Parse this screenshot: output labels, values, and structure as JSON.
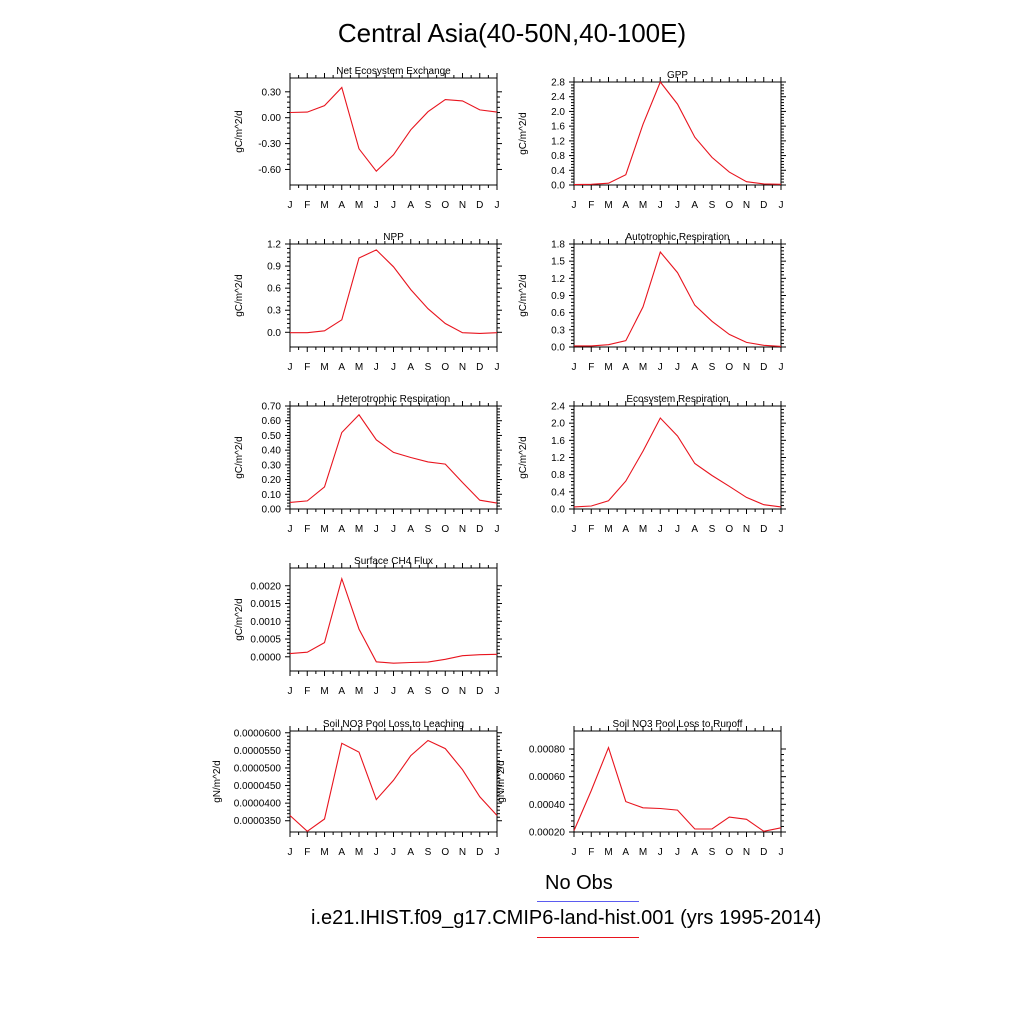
{
  "page": {
    "title": "Central Asia(40-50N,40-100E)"
  },
  "colors": {
    "model": "#e8141e",
    "obs": "#5b5bf0",
    "axis": "#000000"
  },
  "legend": {
    "obs_label": "No Obs",
    "model_label": "i.e21.IHIST.f09_g17.CMIP6-land-hist.001 (yrs 1995-2014)"
  },
  "chart_data": [
    {
      "type": "line",
      "title": "Net Ecosystem Exchange",
      "ylabel": "gC/m^2/d",
      "x": [
        "J",
        "F",
        "M",
        "A",
        "M",
        "J",
        "J",
        "A",
        "S",
        "O",
        "N",
        "D",
        "J"
      ],
      "ylim": [
        -0.78,
        0.46
      ],
      "yticks": [
        -0.6,
        -0.3,
        0.0,
        0.3
      ],
      "yticklabels": [
        "-0.60",
        "-0.30",
        "0.00",
        "0.30"
      ],
      "series": [
        {
          "values": [
            0.06,
            0.065,
            0.14,
            0.35,
            -0.36,
            -0.62,
            -0.43,
            -0.14,
            0.07,
            0.21,
            0.195,
            0.09,
            0.065
          ]
        }
      ]
    },
    {
      "type": "line",
      "title": "GPP",
      "ylabel": "gC/m^2/d",
      "x": [
        "J",
        "F",
        "M",
        "A",
        "M",
        "J",
        "J",
        "A",
        "S",
        "O",
        "N",
        "D",
        "J"
      ],
      "ylim": [
        0,
        2.8
      ],
      "yticks": [
        0.0,
        0.4,
        0.8,
        1.2,
        1.6,
        2.0,
        2.4,
        2.8
      ],
      "yticklabels": [
        "0.0",
        "0.4",
        "0.8",
        "1.2",
        "1.6",
        "2.0",
        "2.4",
        "2.8"
      ],
      "series": [
        {
          "values": [
            0.01,
            0.02,
            0.05,
            0.28,
            1.65,
            2.8,
            2.2,
            1.3,
            0.75,
            0.35,
            0.09,
            0.03,
            0.02
          ]
        }
      ]
    },
    {
      "type": "line",
      "title": "NPP",
      "ylabel": "gC/m^2/d",
      "x": [
        "J",
        "F",
        "M",
        "A",
        "M",
        "J",
        "J",
        "A",
        "S",
        "O",
        "N",
        "D",
        "J"
      ],
      "ylim": [
        -0.2,
        1.2
      ],
      "yticks": [
        0.0,
        0.3,
        0.6,
        0.9,
        1.2
      ],
      "yticklabels": [
        "0.0",
        "0.3",
        "0.6",
        "0.9",
        "1.2"
      ],
      "series": [
        {
          "values": [
            -0.005,
            -0.005,
            0.02,
            0.17,
            1.01,
            1.12,
            0.89,
            0.58,
            0.32,
            0.12,
            -0.005,
            -0.015,
            -0.005
          ]
        }
      ]
    },
    {
      "type": "line",
      "title": "Autotrophic Respiration",
      "ylabel": "gC/m^2/d",
      "x": [
        "J",
        "F",
        "M",
        "A",
        "M",
        "J",
        "J",
        "A",
        "S",
        "O",
        "N",
        "D",
        "J"
      ],
      "ylim": [
        0,
        1.8
      ],
      "yticks": [
        0.0,
        0.3,
        0.6,
        0.9,
        1.2,
        1.5,
        1.8
      ],
      "yticklabels": [
        "0.0",
        "0.3",
        "0.6",
        "0.9",
        "1.2",
        "1.5",
        "1.8"
      ],
      "series": [
        {
          "values": [
            0.02,
            0.02,
            0.04,
            0.11,
            0.7,
            1.66,
            1.3,
            0.73,
            0.45,
            0.22,
            0.08,
            0.03,
            0.01
          ]
        }
      ]
    },
    {
      "type": "line",
      "title": "Heterotrophic Respiration",
      "ylabel": "gC/m^2/d",
      "x": [
        "J",
        "F",
        "M",
        "A",
        "M",
        "J",
        "J",
        "A",
        "S",
        "O",
        "N",
        "D",
        "J"
      ],
      "ylim": [
        0,
        0.7
      ],
      "yticks": [
        0.0,
        0.1,
        0.2,
        0.3,
        0.4,
        0.5,
        0.6,
        0.7
      ],
      "yticklabels": [
        "0.00",
        "0.10",
        "0.20",
        "0.30",
        "0.40",
        "0.50",
        "0.60",
        "0.70"
      ],
      "series": [
        {
          "values": [
            0.045,
            0.055,
            0.15,
            0.52,
            0.64,
            0.47,
            0.385,
            0.35,
            0.32,
            0.305,
            0.18,
            0.06,
            0.04
          ]
        }
      ]
    },
    {
      "type": "line",
      "title": "Ecosystem Respiration",
      "ylabel": "gC/m^2/d",
      "x": [
        "J",
        "F",
        "M",
        "A",
        "M",
        "J",
        "J",
        "A",
        "S",
        "O",
        "N",
        "D",
        "J"
      ],
      "ylim": [
        0,
        2.4
      ],
      "yticks": [
        0.0,
        0.4,
        0.8,
        1.2,
        1.6,
        2.0,
        2.4
      ],
      "yticklabels": [
        "0.0",
        "0.4",
        "0.8",
        "1.2",
        "1.6",
        "2.0",
        "2.4"
      ],
      "series": [
        {
          "values": [
            0.05,
            0.07,
            0.19,
            0.65,
            1.35,
            2.12,
            1.7,
            1.06,
            0.78,
            0.53,
            0.27,
            0.1,
            0.05
          ]
        }
      ]
    },
    {
      "type": "line",
      "title": "Surface CH4 Flux",
      "ylabel": "gC/m^2/d",
      "x": [
        "J",
        "F",
        "M",
        "A",
        "M",
        "J",
        "J",
        "A",
        "S",
        "O",
        "N",
        "D",
        "J"
      ],
      "ylim": [
        -0.0004,
        0.0025
      ],
      "yticks": [
        0.0,
        0.0005,
        0.001,
        0.0015,
        0.002
      ],
      "yticklabels": [
        "0.0000",
        "0.0005",
        "0.0010",
        "0.0015",
        "0.0020"
      ],
      "series": [
        {
          "values": [
            9e-05,
            0.00013,
            0.0004,
            0.0022,
            0.00078,
            -0.00014,
            -0.00018,
            -0.00016,
            -0.00015,
            -7e-05,
            3e-05,
            6e-05,
            7e-05
          ]
        }
      ]
    },
    {
      "type": "line",
      "title": "Soil NO3 Pool Loss to Leaching",
      "ylabel": "gN/m^2/d",
      "x": [
        "J",
        "F",
        "M",
        "A",
        "M",
        "J",
        "J",
        "A",
        "S",
        "O",
        "N",
        "D",
        "J"
      ],
      "ylim": [
        3.18e-05,
        6.05e-05
      ],
      "yticks": [
        3.5e-05,
        4e-05,
        4.5e-05,
        5e-05,
        5.5e-05,
        6e-05
      ],
      "yticklabels": [
        "0.0000350",
        "0.0000400",
        "0.0000450",
        "0.0000500",
        "0.0000550",
        "0.0000600"
      ],
      "series": [
        {
          "values": [
            3.65e-05,
            3.2e-05,
            3.55e-05,
            5.7e-05,
            5.45e-05,
            4.1e-05,
            4.65e-05,
            5.35e-05,
            5.78e-05,
            5.55e-05,
            4.95e-05,
            4.18e-05,
            3.65e-05
          ]
        }
      ]
    },
    {
      "type": "line",
      "title": "Soil NO3 Pool Loss to Runoff",
      "ylabel": "gN/m^2/d",
      "x": [
        "J",
        "F",
        "M",
        "A",
        "M",
        "J",
        "J",
        "A",
        "S",
        "O",
        "N",
        "D",
        "J"
      ],
      "ylim": [
        0.0002,
        0.00093
      ],
      "yticks": [
        0.0002,
        0.0004,
        0.0006,
        0.0008
      ],
      "yticklabels": [
        "0.00020",
        "0.00040",
        "0.00060",
        "0.00080"
      ],
      "series": [
        {
          "values": [
            0.00021,
            0.0005,
            0.00081,
            0.00042,
            0.000375,
            0.00037,
            0.000358,
            0.000222,
            0.000222,
            0.000308,
            0.000292,
            0.000205,
            0.00023
          ]
        }
      ]
    }
  ]
}
